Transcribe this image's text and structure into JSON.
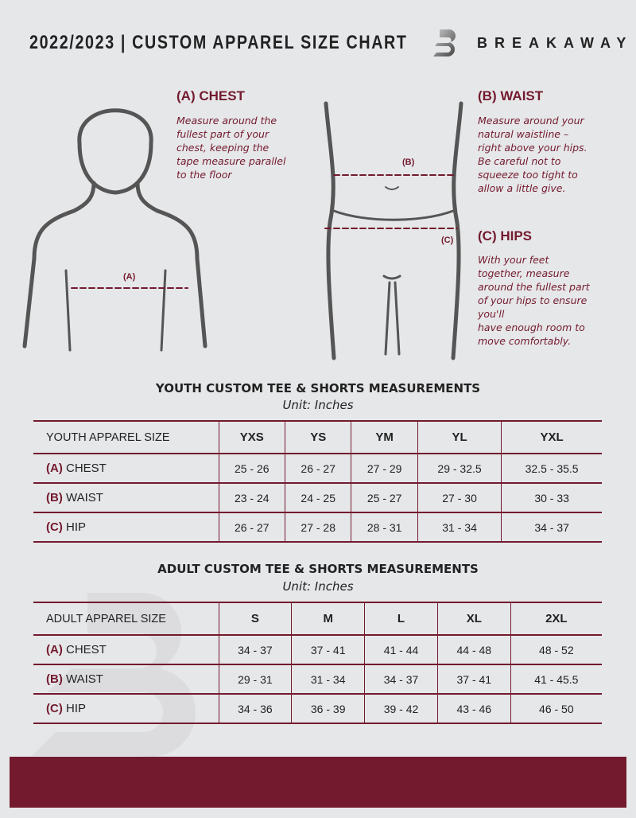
{
  "header": {
    "title": "2022/2023 | CUSTOM APPAREL SIZE CHART",
    "brand": "BREAKAWAY"
  },
  "guide": {
    "chest": {
      "label": "(A) CHEST",
      "marker": "(A)",
      "text": "Measure around the\nfullest part of your\nchest, keeping the\ntape measure parallel\nto the floor"
    },
    "waist": {
      "label": "(B) WAIST",
      "marker": "(B)",
      "text": "Measure around your\nnatural waistline –\nright above your hips.\nBe careful not to\nsqueeze too tight to\nallow a little give."
    },
    "hips": {
      "label": "(C) HIPS",
      "marker": "(C)",
      "text": "With your feet\ntogether, measure\naround the fullest part\nof your hips to ensure\nyou'll\nhave enough room to\nmove comfortably."
    }
  },
  "youth": {
    "title": "YOUTH CUSTOM TEE & SHORTS MEASUREMENTS",
    "unit": "Unit: Inches",
    "size_header": "YOUTH APPAREL SIZE",
    "sizes": [
      "YXS",
      "YS",
      "YM",
      "YL",
      "YXL"
    ],
    "rows": [
      {
        "code": "(A)",
        "name": "CHEST",
        "values": [
          "25 - 26",
          "26 - 27",
          "27 - 29",
          "29 - 32.5",
          "32.5 - 35.5"
        ]
      },
      {
        "code": "(B)",
        "name": "WAIST",
        "values": [
          "23 - 24",
          "24 - 25",
          "25 - 27",
          "27 - 30",
          "30 - 33"
        ]
      },
      {
        "code": "(C)",
        "name": "HIP",
        "values": [
          "26 - 27",
          "27 - 28",
          "28 - 31",
          "31 - 34",
          "34 - 37"
        ]
      }
    ]
  },
  "adult": {
    "title": "ADULT CUSTOM TEE & SHORTS MEASUREMENTS",
    "unit": "Unit: Inches",
    "size_header": "ADULT APPAREL SIZE",
    "sizes": [
      "S",
      "M",
      "L",
      "XL",
      "2XL"
    ],
    "rows": [
      {
        "code": "(A)",
        "name": "CHEST",
        "values": [
          "34 - 37",
          "37 - 41",
          "41 - 44",
          "44 - 48",
          "48 - 52"
        ]
      },
      {
        "code": "(B)",
        "name": "WAIST",
        "values": [
          "29 - 31",
          "31 - 34",
          "34 - 37",
          "37 - 41",
          "41 - 45.5"
        ]
      },
      {
        "code": "(C)",
        "name": "HIP",
        "values": [
          "34 - 36",
          "36 - 39",
          "39 - 42",
          "43 - 46",
          "46 - 50"
        ]
      }
    ]
  },
  "colors": {
    "accent": "#731a2e",
    "background": "#e6e7e9"
  }
}
